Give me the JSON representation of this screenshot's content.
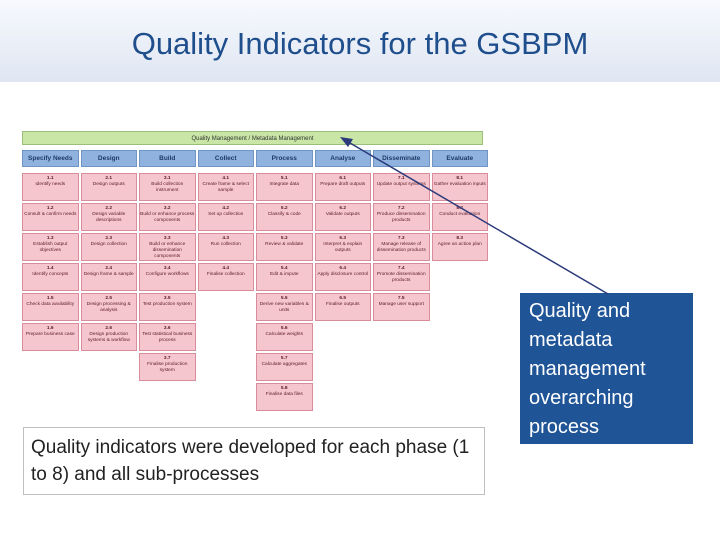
{
  "title": "Quality Indicators for the GSBPM",
  "gsbpm": {
    "management_label": "Quality Management / Metadata Management",
    "phases": [
      "Specify Needs",
      "Design",
      "Build",
      "Collect",
      "Process",
      "Analyse",
      "Disseminate",
      "Evaluate"
    ],
    "columns": [
      [
        [
          "1.1",
          "Identify needs"
        ],
        [
          "1.2",
          "Consult & confirm needs"
        ],
        [
          "1.3",
          "Establish output objectives"
        ],
        [
          "1.4",
          "Identify concepts"
        ],
        [
          "1.5",
          "Check data availability"
        ],
        [
          "1.6",
          "Prepare business case"
        ]
      ],
      [
        [
          "2.1",
          "Design outputs"
        ],
        [
          "2.2",
          "Design variable descriptions"
        ],
        [
          "2.3",
          "Design collection"
        ],
        [
          "2.4",
          "Design frame & sample"
        ],
        [
          "2.5",
          "Design processing & analysis"
        ],
        [
          "2.6",
          "Design production systems & workflow"
        ]
      ],
      [
        [
          "3.1",
          "Build collection instrument"
        ],
        [
          "3.2",
          "Build or enhance process components"
        ],
        [
          "3.3",
          "Build or enhance dissemination components"
        ],
        [
          "3.4",
          "Configure workflows"
        ],
        [
          "3.5",
          "Test production system"
        ],
        [
          "3.6",
          "Test statistical business process"
        ],
        [
          "3.7",
          "Finalise production system"
        ]
      ],
      [
        [
          "4.1",
          "Create frame & select sample"
        ],
        [
          "4.2",
          "Set up collection"
        ],
        [
          "4.3",
          "Run collection"
        ],
        [
          "4.4",
          "Finalise collection"
        ]
      ],
      [
        [
          "5.1",
          "Integrate data"
        ],
        [
          "5.2",
          "Classify & code"
        ],
        [
          "5.3",
          "Review & validate"
        ],
        [
          "5.4",
          "Edit & impute"
        ],
        [
          "5.5",
          "Derive new variables & units"
        ],
        [
          "5.6",
          "Calculate weights"
        ],
        [
          "5.7",
          "Calculate aggregates"
        ],
        [
          "5.8",
          "Finalise data files"
        ]
      ],
      [
        [
          "6.1",
          "Prepare draft outputs"
        ],
        [
          "6.2",
          "Validate outputs"
        ],
        [
          "6.3",
          "Interpret & explain outputs"
        ],
        [
          "6.4",
          "Apply disclosure control"
        ],
        [
          "6.5",
          "Finalise outputs"
        ]
      ],
      [
        [
          "7.1",
          "Update output systems"
        ],
        [
          "7.2",
          "Produce dissemination products"
        ],
        [
          "7.3",
          "Manage release of dissemination products"
        ],
        [
          "7.4",
          "Promote dissemination products"
        ],
        [
          "7.5",
          "Manage user support"
        ]
      ],
      [
        [
          "8.1",
          "Gather evaluation inputs"
        ],
        [
          "8.2",
          "Conduct evaluation"
        ],
        [
          "8.3",
          "Agree an action plan"
        ]
      ]
    ]
  },
  "callout_left": "Quality indicators were developed for each phase (1 to 8) and all sub-processes",
  "callout_right": "Quality and metadata management overarching process",
  "colors": {
    "title": "#1f4e8c",
    "callout_fill": "#1f5496",
    "phase_fill": "#8fb3de",
    "sub_fill": "#f6c6cf",
    "mgmt_fill": "#c9e6a6",
    "arrow": "#2a3a7a"
  }
}
